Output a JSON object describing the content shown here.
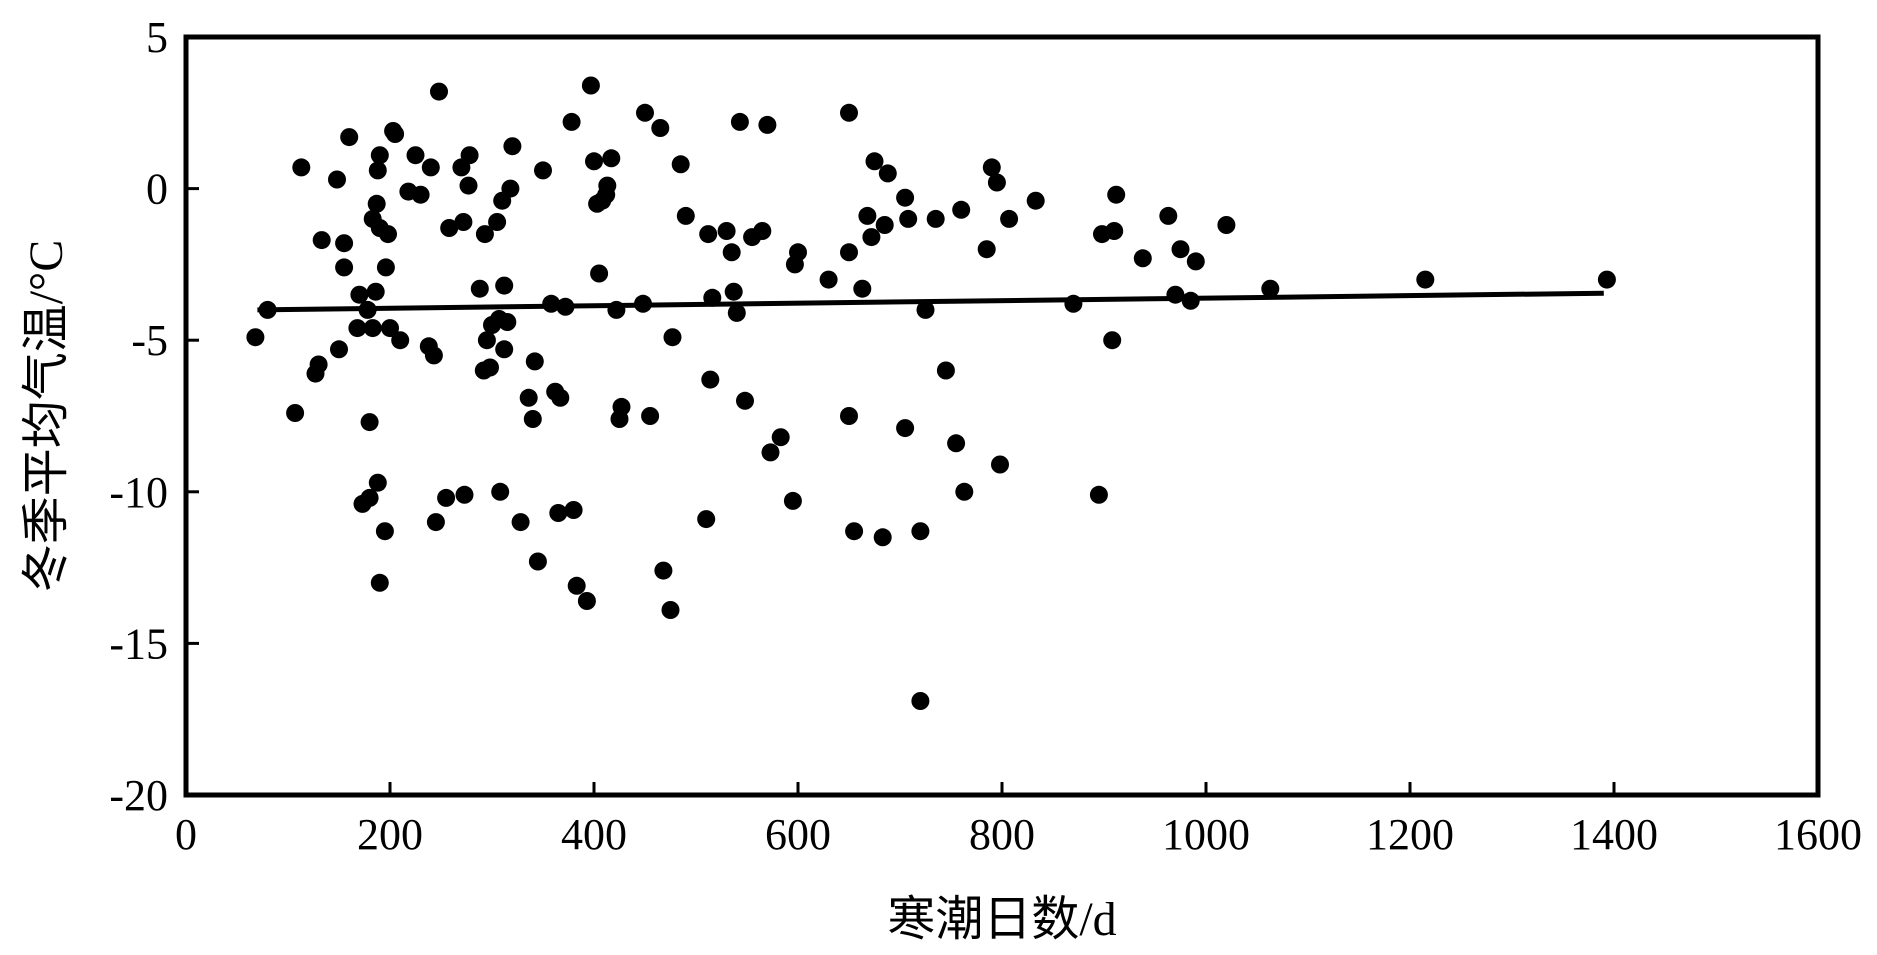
{
  "chart_data": {
    "type": "scatter",
    "xlabel": "寒潮日数/d",
    "ylabel": "冬季平均气温/°C",
    "xlim": [
      0,
      1600
    ],
    "ylim": [
      -20,
      5
    ],
    "x_ticks": [
      0,
      200,
      400,
      600,
      800,
      1000,
      1200,
      1400,
      1600
    ],
    "y_ticks": [
      5,
      0,
      -5,
      -10,
      -15,
      -20
    ],
    "grid": false,
    "legend": "none",
    "marker_color": "#000000",
    "points": [
      [
        68,
        -4.9
      ],
      [
        80,
        -4.0
      ],
      [
        107,
        -7.4
      ],
      [
        113,
        0.7
      ],
      [
        127,
        -6.1
      ],
      [
        130,
        -5.8
      ],
      [
        133,
        -1.7
      ],
      [
        148,
        0.3
      ],
      [
        150,
        -5.3
      ],
      [
        155,
        -2.6
      ],
      [
        155,
        -1.8
      ],
      [
        160,
        1.7
      ],
      [
        168,
        -4.6
      ],
      [
        170,
        -3.5
      ],
      [
        173,
        -10.4
      ],
      [
        178,
        -4.0
      ],
      [
        180,
        -7.7
      ],
      [
        180,
        -10.2
      ],
      [
        183,
        -1.0
      ],
      [
        183,
        -4.6
      ],
      [
        186,
        -3.4
      ],
      [
        187,
        -0.5
      ],
      [
        188,
        0.6
      ],
      [
        188,
        -9.7
      ],
      [
        190,
        1.1
      ],
      [
        190,
        -1.3
      ],
      [
        190,
        -13.0
      ],
      [
        195,
        -11.3
      ],
      [
        196,
        -2.6
      ],
      [
        198,
        -1.5
      ],
      [
        200,
        -4.6
      ],
      [
        203,
        1.9
      ],
      [
        205,
        1.8
      ],
      [
        210,
        -5.0
      ],
      [
        218,
        -0.1
      ],
      [
        225,
        1.1
      ],
      [
        230,
        -0.2
      ],
      [
        238,
        -5.2
      ],
      [
        240,
        0.7
      ],
      [
        243,
        -5.5
      ],
      [
        245,
        -11.0
      ],
      [
        248,
        3.2
      ],
      [
        255,
        -10.2
      ],
      [
        258,
        -1.3
      ],
      [
        270,
        0.7
      ],
      [
        272,
        -1.1
      ],
      [
        273,
        -10.1
      ],
      [
        277,
        0.1
      ],
      [
        278,
        1.1
      ],
      [
        288,
        -3.3
      ],
      [
        292,
        -6.0
      ],
      [
        293,
        -1.5
      ],
      [
        295,
        -5.0
      ],
      [
        298,
        -5.9
      ],
      [
        300,
        -4.5
      ],
      [
        305,
        -1.1
      ],
      [
        307,
        -4.3
      ],
      [
        308,
        -10.0
      ],
      [
        310,
        -0.4
      ],
      [
        312,
        -5.3
      ],
      [
        312,
        -3.2
      ],
      [
        315,
        -4.4
      ],
      [
        318,
        0.0
      ],
      [
        320,
        1.4
      ],
      [
        328,
        -11.0
      ],
      [
        336,
        -6.9
      ],
      [
        340,
        -7.6
      ],
      [
        342,
        -5.7
      ],
      [
        345,
        -12.3
      ],
      [
        350,
        0.6
      ],
      [
        358,
        -3.8
      ],
      [
        362,
        -6.7
      ],
      [
        365,
        -10.7
      ],
      [
        367,
        -6.9
      ],
      [
        372,
        -3.9
      ],
      [
        378,
        2.2
      ],
      [
        380,
        -10.6
      ],
      [
        383,
        -13.1
      ],
      [
        393,
        -13.6
      ],
      [
        397,
        3.4
      ],
      [
        400,
        0.9
      ],
      [
        403,
        -0.5
      ],
      [
        405,
        -2.8
      ],
      [
        408,
        -0.4
      ],
      [
        412,
        -0.2
      ],
      [
        413,
        0.1
      ],
      [
        417,
        1.0
      ],
      [
        422,
        -4.0
      ],
      [
        425,
        -7.6
      ],
      [
        427,
        -7.2
      ],
      [
        448,
        -3.8
      ],
      [
        450,
        2.5
      ],
      [
        455,
        -7.5
      ],
      [
        465,
        2.0
      ],
      [
        468,
        -12.6
      ],
      [
        475,
        -13.9
      ],
      [
        477,
        -4.9
      ],
      [
        485,
        0.8
      ],
      [
        490,
        -0.9
      ],
      [
        510,
        -10.9
      ],
      [
        512,
        -1.5
      ],
      [
        514,
        -6.3
      ],
      [
        516,
        -3.6
      ],
      [
        530,
        -1.4
      ],
      [
        535,
        -2.1
      ],
      [
        537,
        -3.4
      ],
      [
        540,
        -4.1
      ],
      [
        543,
        2.2
      ],
      [
        548,
        -7.0
      ],
      [
        555,
        -1.6
      ],
      [
        565,
        -1.4
      ],
      [
        570,
        2.1
      ],
      [
        573,
        -8.7
      ],
      [
        583,
        -8.2
      ],
      [
        595,
        -10.3
      ],
      [
        597,
        -2.5
      ],
      [
        600,
        -2.1
      ],
      [
        630,
        -3.0
      ],
      [
        650,
        2.5
      ],
      [
        650,
        -2.1
      ],
      [
        650,
        -7.5
      ],
      [
        655,
        -11.3
      ],
      [
        663,
        -3.3
      ],
      [
        668,
        -0.9
      ],
      [
        672,
        -1.6
      ],
      [
        675,
        0.9
      ],
      [
        683,
        -11.5
      ],
      [
        685,
        -1.2
      ],
      [
        688,
        0.5
      ],
      [
        705,
        -0.3
      ],
      [
        705,
        -7.9
      ],
      [
        708,
        -1.0
      ],
      [
        720,
        -11.3
      ],
      [
        720,
        -16.9
      ],
      [
        725,
        -4.0
      ],
      [
        735,
        -1.0
      ],
      [
        745,
        -6.0
      ],
      [
        755,
        -8.4
      ],
      [
        760,
        -0.7
      ],
      [
        763,
        -10.0
      ],
      [
        785,
        -2.0
      ],
      [
        790,
        0.7
      ],
      [
        795,
        0.2
      ],
      [
        798,
        -9.1
      ],
      [
        807,
        -1.0
      ],
      [
        833,
        -0.4
      ],
      [
        870,
        -3.8
      ],
      [
        895,
        -10.1
      ],
      [
        898,
        -1.5
      ],
      [
        908,
        -5.0
      ],
      [
        910,
        -1.4
      ],
      [
        912,
        -0.2
      ],
      [
        938,
        -2.3
      ],
      [
        963,
        -0.9
      ],
      [
        970,
        -3.5
      ],
      [
        975,
        -2.0
      ],
      [
        985,
        -3.7
      ],
      [
        990,
        -2.4
      ],
      [
        1020,
        -1.2
      ],
      [
        1063,
        -3.3
      ],
      [
        1215,
        -3.0
      ],
      [
        1393,
        -3.0
      ]
    ],
    "trendline": {
      "x": [
        70,
        1390
      ],
      "y": [
        -4.0,
        -3.45
      ],
      "color": "#000000"
    }
  }
}
